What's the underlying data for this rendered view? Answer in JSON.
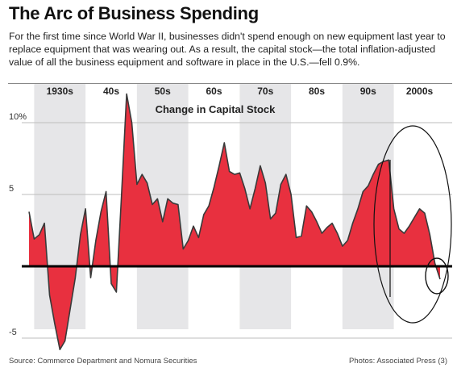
{
  "header": {
    "title": "The Arc of Business Spending",
    "subtitle": "For the first time since World War II, businesses didn't spend enough on new equipment last year to replace equipment that was wearing out. As a result, the capital stock—the total inflation-adjusted value of all the business equipment and software in place in the U.S.—fell 0.9%."
  },
  "footer": {
    "source": "Source: Commerce Department and Nomura Securities",
    "credit": "Photos: Associated Press (3)"
  },
  "colors": {
    "fill": "#e8303f",
    "line": "#3a3a3a",
    "band": "#e6e6e8"
  },
  "chart_data": {
    "type": "area",
    "title": "Change in Capital Stock",
    "xlabel": "",
    "ylabel": "",
    "xlim": [
      1926,
      2010
    ],
    "ylim": [
      -6.5,
      12
    ],
    "decade_labels": [
      "1930s",
      "40s",
      "50s",
      "60s",
      "70s",
      "80s",
      "90s",
      "2000s"
    ],
    "decade_starts": [
      1930,
      1940,
      1950,
      1960,
      1970,
      1980,
      1990,
      2000
    ],
    "y_ticks": [
      {
        "value": 10,
        "label": "10%"
      },
      {
        "value": 5,
        "label": "5"
      },
      {
        "value": -5,
        "label": "-5"
      }
    ],
    "grid": true,
    "x": [
      1929,
      1930,
      1931,
      1932,
      1933,
      1934,
      1935,
      1936,
      1937,
      1938,
      1939,
      1940,
      1941,
      1942,
      1943,
      1944,
      1945,
      1946,
      1947,
      1948,
      1949,
      1950,
      1951,
      1952,
      1953,
      1954,
      1955,
      1956,
      1957,
      1958,
      1959,
      1960,
      1961,
      1962,
      1963,
      1964,
      1965,
      1966,
      1967,
      1968,
      1969,
      1970,
      1971,
      1972,
      1973,
      1974,
      1975,
      1976,
      1977,
      1978,
      1979,
      1980,
      1981,
      1982,
      1983,
      1984,
      1985,
      1986,
      1987,
      1988,
      1989,
      1990,
      1991,
      1992,
      1993,
      1994,
      1995,
      1996,
      1997,
      1998,
      1999,
      2000,
      2001,
      2002,
      2003,
      2004,
      2005,
      2006,
      2007,
      2008,
      2009
    ],
    "values": [
      3.8,
      1.9,
      2.2,
      3.0,
      -2.0,
      -4.0,
      -5.8,
      -5.2,
      -3.0,
      -0.8,
      2.2,
      4.0,
      -0.8,
      1.8,
      3.8,
      5.2,
      -1.2,
      -1.8,
      5.0,
      12.0,
      10.0,
      5.7,
      6.4,
      5.8,
      4.3,
      4.7,
      3.1,
      4.7,
      4.4,
      4.3,
      1.2,
      1.8,
      2.8,
      2.0,
      3.6,
      4.2,
      5.5,
      7.0,
      8.6,
      6.6,
      6.4,
      6.5,
      5.4,
      4.0,
      5.4,
      7.0,
      5.8,
      3.3,
      3.7,
      5.7,
      6.4,
      5.0,
      2.0,
      2.1,
      4.2,
      3.8,
      3.1,
      2.3,
      2.7,
      3.0,
      2.3,
      1.4,
      1.8,
      3.0,
      4.0,
      5.2,
      5.6,
      6.4,
      7.1,
      7.3,
      7.4,
      4.0,
      2.6,
      2.3,
      2.8,
      3.4,
      4.0,
      3.7,
      2.2,
      0.2,
      -0.9
    ]
  }
}
